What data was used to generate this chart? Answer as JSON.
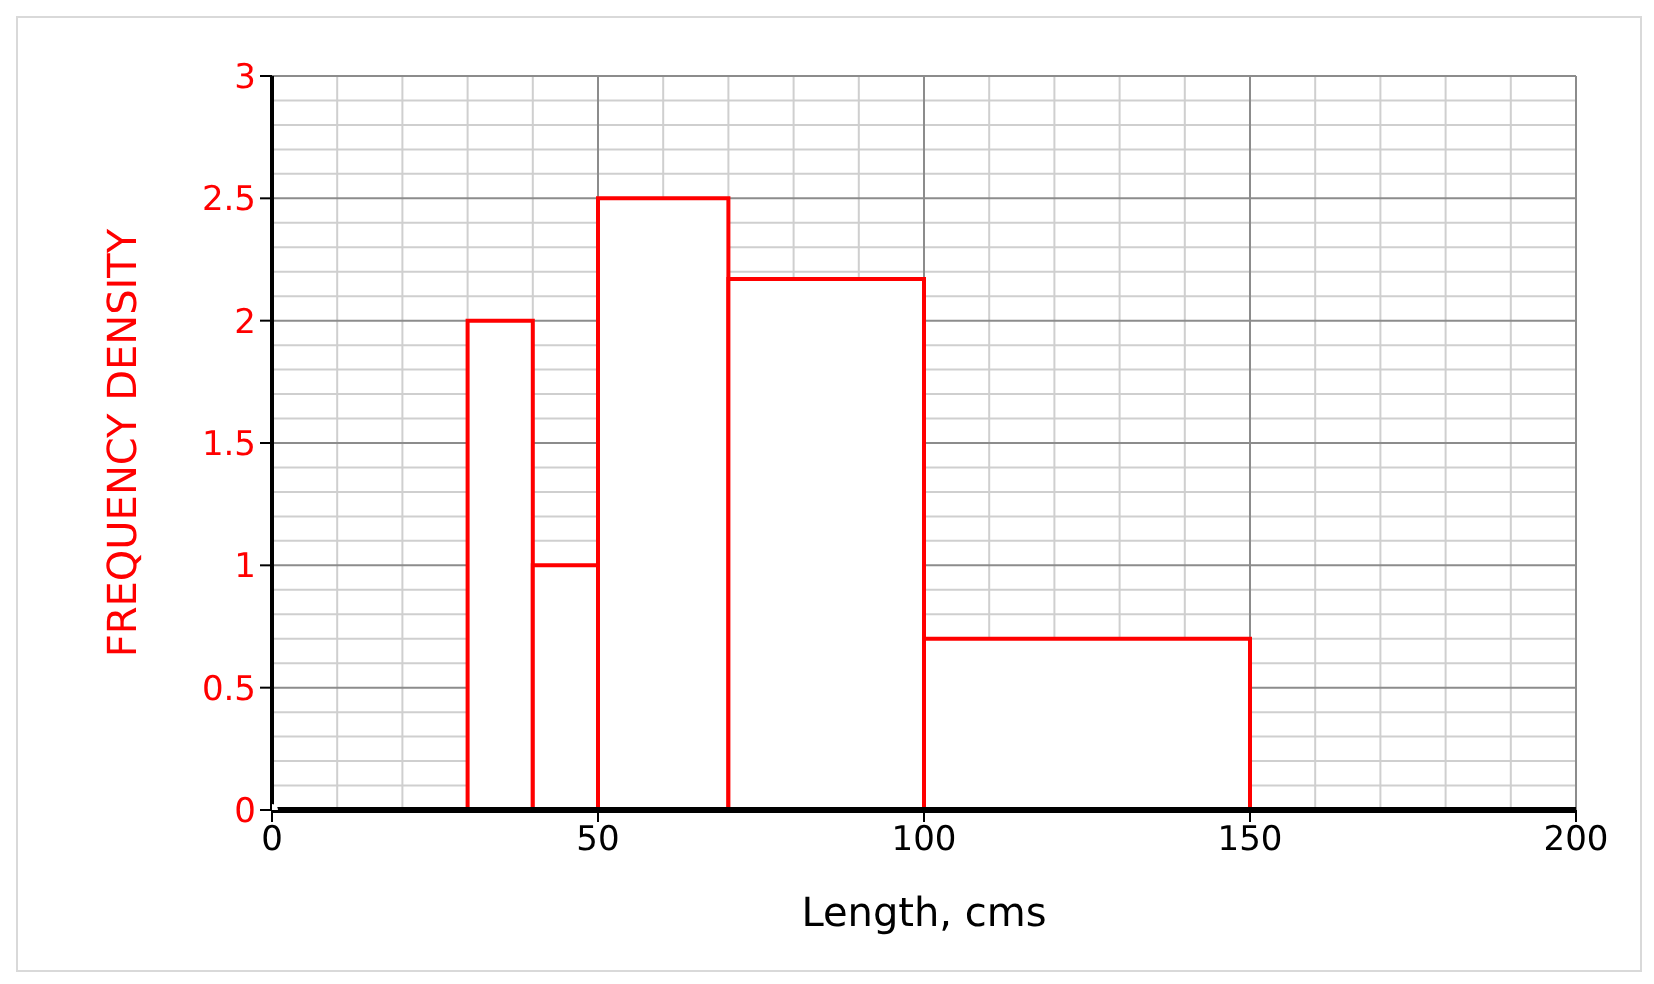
{
  "chart_data": {
    "type": "histogram",
    "xlabel": "Length, cms",
    "ylabel": "FREQUENCY DENSITY",
    "bins": [
      30,
      40,
      50,
      70,
      100,
      150
    ],
    "values": [
      2,
      1,
      2.5,
      2.17,
      0.7
    ],
    "color": "#ff0000",
    "xlim": [
      0,
      200
    ],
    "xticks": [
      0,
      50,
      100,
      150,
      200
    ],
    "ylim": [
      0,
      3
    ],
    "yticks": [
      0,
      0.5,
      1,
      1.5,
      2,
      2.5,
      3
    ],
    "grid": true
  }
}
